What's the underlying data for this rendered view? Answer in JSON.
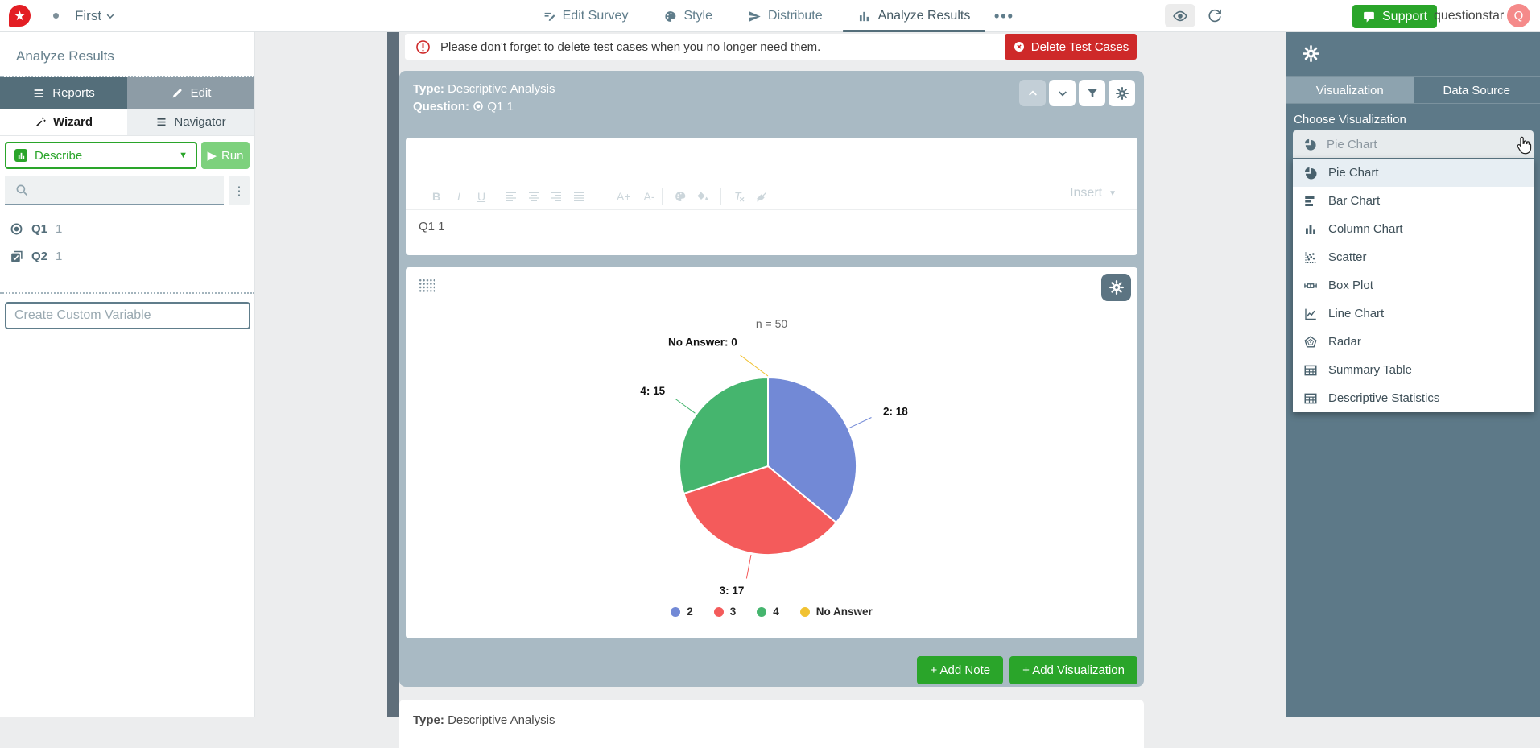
{
  "navbar": {
    "project_name": "First",
    "tabs": [
      {
        "label": "Edit Survey",
        "icon": "edit-survey"
      },
      {
        "label": "Style",
        "icon": "style"
      },
      {
        "label": "Distribute",
        "icon": "distribute"
      },
      {
        "label": "Analyze Results",
        "icon": "analyze",
        "active": true
      }
    ],
    "support_label": "Support",
    "account_name": "questionstar",
    "avatar_initial": "Q"
  },
  "sidebar": {
    "title": "Analyze Results",
    "reports_label": "Reports",
    "edit_label": "Edit",
    "wizard_label": "Wizard",
    "navigator_label": "Navigator",
    "describe_label": "Describe",
    "run_label": "Run",
    "questions": [
      {
        "id": "Q1",
        "count": "1",
        "icon": "radio"
      },
      {
        "id": "Q2",
        "count": "1",
        "icon": "checkbox"
      }
    ],
    "custom_variable_placeholder": "Create Custom Variable"
  },
  "main": {
    "banner": {
      "text": "Please don't forget to delete test cases when you no longer need them.",
      "button_label": "Delete Test Cases"
    },
    "panel": {
      "type_label": "Type:",
      "type_value": "Descriptive Analysis",
      "question_label": "Question:",
      "question_value": "Q1 1",
      "editor": {
        "content": "Q1 1",
        "insert_label": "Insert",
        "toolbar": [
          {
            "icon": "bold",
            "glyph": "B"
          },
          {
            "icon": "italic",
            "glyph": "I"
          },
          {
            "icon": "underline",
            "glyph": "U"
          },
          {
            "sep": true
          },
          {
            "icon": "align-left"
          },
          {
            "icon": "align-center"
          },
          {
            "icon": "align-right"
          },
          {
            "icon": "align-justify"
          },
          {
            "sep": true
          },
          {
            "icon": "font-size-up",
            "glyph": "A+"
          },
          {
            "icon": "font-size-down",
            "glyph": "A-"
          },
          {
            "sep": true
          },
          {
            "icon": "text-color"
          },
          {
            "icon": "fill-color"
          },
          {
            "sep": true
          },
          {
            "icon": "clear-format"
          },
          {
            "icon": "remove-format"
          }
        ]
      },
      "add_note_label": "+  Add Note",
      "add_visualization_label": "+  Add Visualization"
    },
    "next_panel": {
      "type_label": "Type:",
      "type_value": "Descriptive Analysis"
    }
  },
  "chart_data": {
    "type": "pie",
    "title": "n = 50",
    "n_total": 50,
    "labels": [
      "2",
      "3",
      "4",
      "No Answer"
    ],
    "values": [
      18,
      17,
      15,
      0
    ],
    "colors": [
      "#7289d6",
      "#f45b5b",
      "#45b56e",
      "#f1c232"
    ],
    "slice_labels": [
      "2: 18",
      "3: 17",
      "4: 15",
      "No Answer: 0"
    ],
    "legend_position": "bottom"
  },
  "right_panel": {
    "visualization_tab": "Visualization",
    "data_source_tab": "Data Source",
    "choose_label": "Choose Visualization",
    "selected_value": "Pie Chart",
    "options": [
      {
        "label": "Pie Chart",
        "icon": "pie",
        "highlighted": true
      },
      {
        "label": "Bar Chart",
        "icon": "bar"
      },
      {
        "label": "Column Chart",
        "icon": "column"
      },
      {
        "label": "Scatter",
        "icon": "scatter"
      },
      {
        "label": "Box Plot",
        "icon": "box"
      },
      {
        "label": "Line Chart",
        "icon": "line"
      },
      {
        "label": "Radar",
        "icon": "radar"
      },
      {
        "label": "Summary Table",
        "icon": "table"
      },
      {
        "label": "Descriptive Statistics",
        "icon": "table"
      }
    ]
  },
  "colors": {
    "accent_green": "#2aa52a",
    "danger_red": "#ce2929",
    "panel_slate": "#a9bac4",
    "right_sidebar": "#5d7988",
    "navbar_text": "#607d8b"
  }
}
